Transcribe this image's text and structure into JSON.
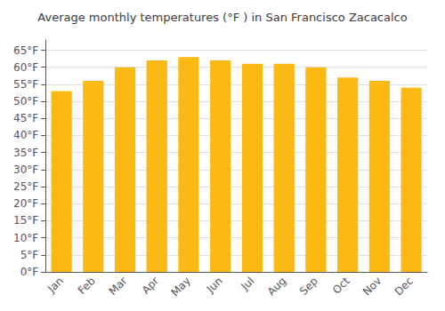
{
  "chart_data": {
    "type": "bar",
    "title": "Average monthly temperatures (°F ) in San Francisco Zacacalco",
    "categories": [
      "Jan",
      "Feb",
      "Mar",
      "Apr",
      "May",
      "Jun",
      "Jul",
      "Aug",
      "Sep",
      "Oct",
      "Nov",
      "Dec"
    ],
    "values": [
      53,
      56,
      60,
      62,
      63,
      62,
      61,
      61,
      60,
      57,
      56,
      54
    ],
    "color": "#FDB913",
    "ylim": [
      0,
      68
    ],
    "yticks": [
      {
        "value": 0,
        "label": "0°F"
      },
      {
        "value": 5,
        "label": "5°F"
      },
      {
        "value": 10,
        "label": "10°F"
      },
      {
        "value": 15,
        "label": "15°F"
      },
      {
        "value": 20,
        "label": "20°F"
      },
      {
        "value": 25,
        "label": "25°F"
      },
      {
        "value": 30,
        "label": "30°F"
      },
      {
        "value": 35,
        "label": "35°F"
      },
      {
        "value": 40,
        "label": "40°F"
      },
      {
        "value": 45,
        "label": "45°F"
      },
      {
        "value": 50,
        "label": "50°F"
      },
      {
        "value": 55,
        "label": "55°F"
      },
      {
        "value": 60,
        "label": "60°F"
      },
      {
        "value": 65,
        "label": "65°F"
      }
    ],
    "grid": true
  }
}
